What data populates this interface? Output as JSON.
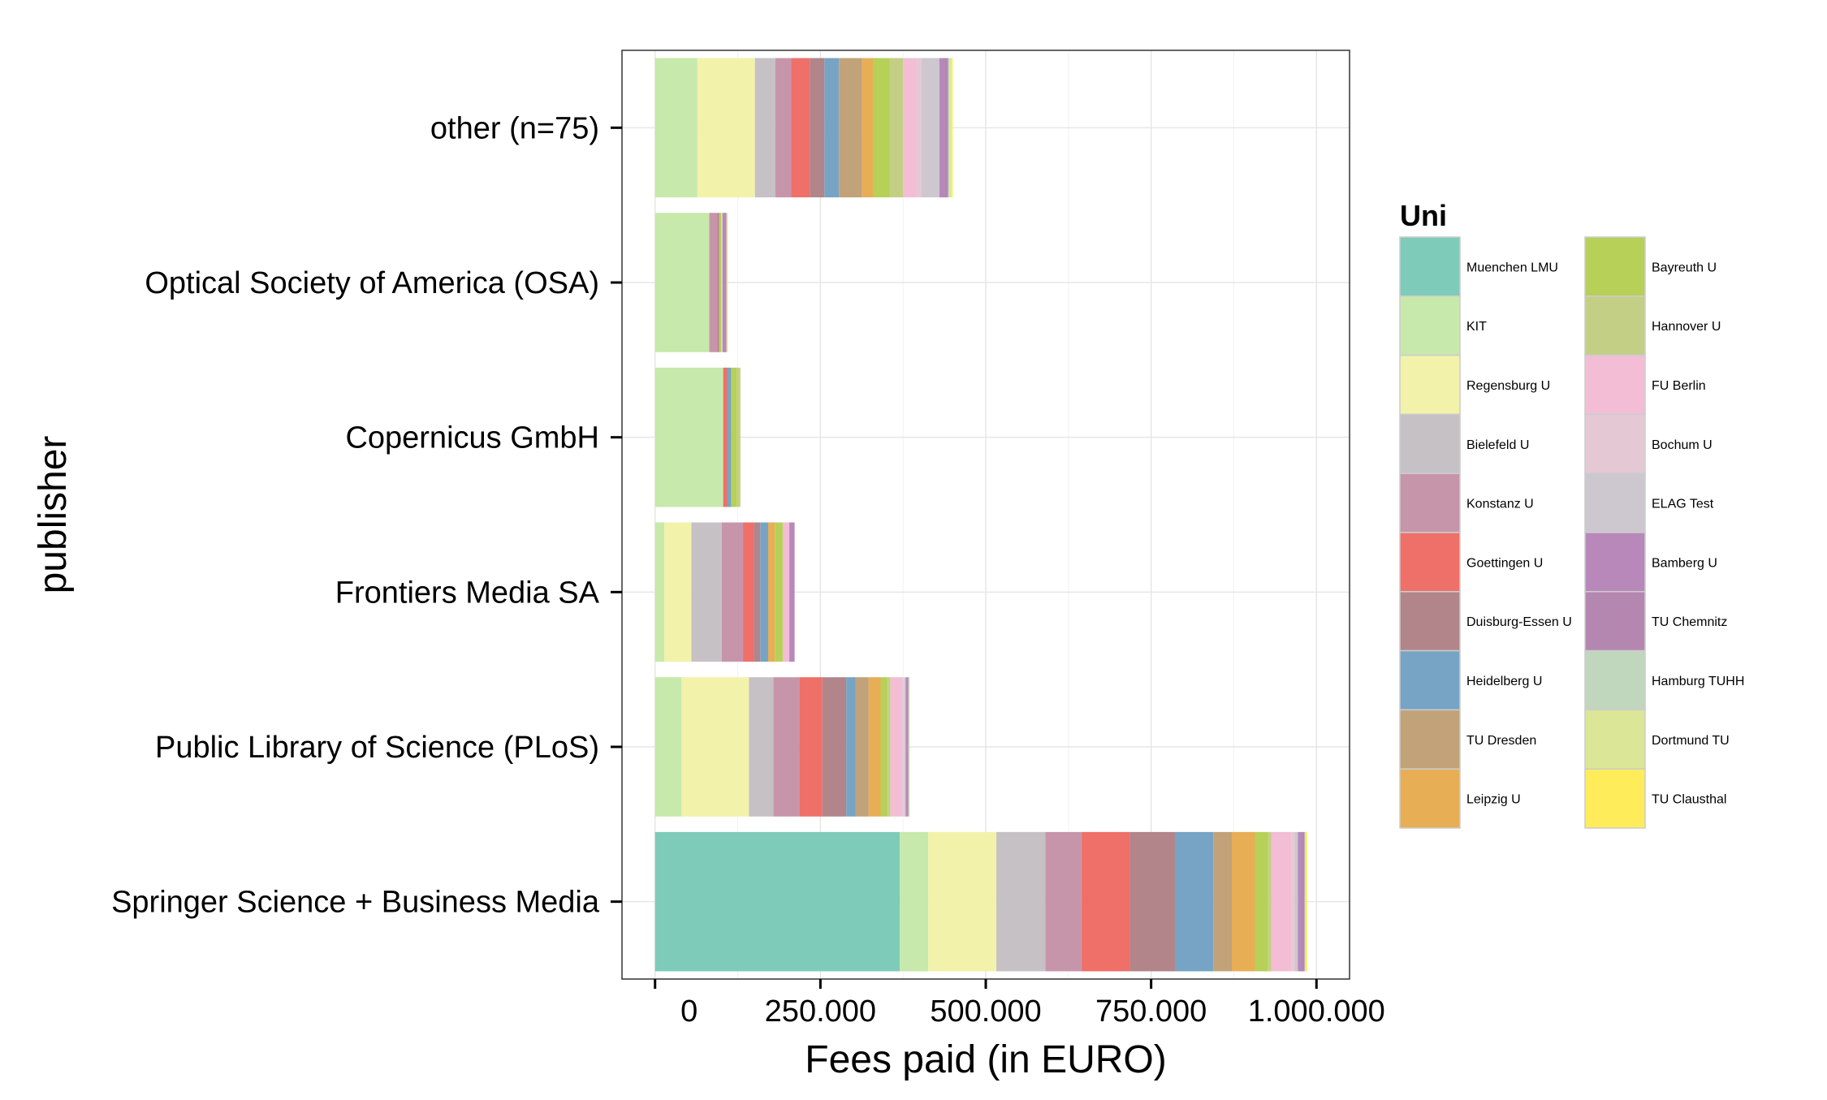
{
  "chart_data": {
    "type": "bar",
    "orientation": "horizontal",
    "stacked": true,
    "xlabel": "Fees paid (in EURO)",
    "ylabel": "publisher",
    "xlim": [
      -50000,
      1050000
    ],
    "x_ticks": [
      0,
      250000,
      500000,
      750000,
      1000000
    ],
    "x_tick_labels": [
      "0",
      "250.000",
      "500.000",
      "750.000",
      "1.000.000"
    ],
    "grid": true,
    "legend": {
      "title": "Uni",
      "position": "right",
      "columns": 2
    },
    "categories": [
      "Springer Science + Business Media",
      "Public Library of Science (PLoS)",
      "Frontiers Media SA",
      "Copernicus GmbH",
      "Optical Society of America (OSA)",
      "other (n=75)"
    ],
    "series": [
      {
        "name": "Muenchen LMU",
        "color": "#7fcbb9",
        "values": [
          370000,
          0,
          0,
          0,
          0,
          0
        ]
      },
      {
        "name": "KIT",
        "color": "#c7e9ab",
        "values": [
          43000,
          40000,
          14000,
          103000,
          82000,
          64000
        ]
      },
      {
        "name": "Regensburg U",
        "color": "#f2f2ab",
        "values": [
          103000,
          102000,
          41000,
          0,
          0,
          87000
        ]
      },
      {
        "name": "Bielefeld U",
        "color": "#c6c1c5",
        "values": [
          74000,
          37000,
          46000,
          0,
          0,
          31000
        ]
      },
      {
        "name": "Konstanz U",
        "color": "#c795aa",
        "values": [
          55000,
          39000,
          32000,
          0,
          12000,
          24000
        ]
      },
      {
        "name": "Goettingen U",
        "color": "#ef6f69",
        "values": [
          73000,
          35000,
          16000,
          6000,
          0,
          28000
        ]
      },
      {
        "name": "Duisburg-Essen U",
        "color": "#b18589",
        "values": [
          68000,
          36000,
          10000,
          0,
          3000,
          22000
        ]
      },
      {
        "name": "Heidelberg U",
        "color": "#77a4c4",
        "values": [
          58000,
          14000,
          12000,
          6000,
          0,
          22000
        ]
      },
      {
        "name": "TU Dresden",
        "color": "#c1a279",
        "values": [
          28000,
          20000,
          0,
          0,
          0,
          35000
        ]
      },
      {
        "name": "Leipzig U",
        "color": "#e8ae55",
        "values": [
          35000,
          18000,
          10000,
          0,
          0,
          17000
        ]
      },
      {
        "name": "Bayreuth U",
        "color": "#b6d058",
        "values": [
          20000,
          10000,
          12000,
          9000,
          3000,
          25000
        ]
      },
      {
        "name": "Hannover U",
        "color": "#c4cf86",
        "values": [
          5000,
          5000,
          0,
          5000,
          0,
          20000
        ]
      },
      {
        "name": "FU Berlin",
        "color": "#f3bdd5",
        "values": [
          30000,
          18000,
          10000,
          0,
          0,
          20000
        ]
      },
      {
        "name": "Bochum U",
        "color": "#e4c9d5",
        "values": [
          5000,
          3000,
          0,
          0,
          2000,
          8000
        ]
      },
      {
        "name": "ELAG Test",
        "color": "#cdc7cf",
        "values": [
          5000,
          2000,
          0,
          0,
          0,
          27000
        ]
      },
      {
        "name": "Bamberg U",
        "color": "#b888bb",
        "values": [
          5000,
          2000,
          8000,
          0,
          6000,
          8000
        ]
      },
      {
        "name": "TU Chemnitz",
        "color": "#b487b0",
        "values": [
          5000,
          2000,
          0,
          0,
          0,
          5000
        ]
      },
      {
        "name": "Hamburg TUHH",
        "color": "#c0d6bd",
        "values": [
          1000,
          1000,
          0,
          0,
          0,
          2000
        ]
      },
      {
        "name": "Dortmund TU",
        "color": "#dbe796",
        "values": [
          1000,
          1000,
          0,
          0,
          2000,
          3000
        ]
      },
      {
        "name": "TU Clausthal",
        "color": "#ffec5a",
        "values": [
          2000,
          0,
          0,
          0,
          0,
          2000
        ]
      }
    ]
  }
}
